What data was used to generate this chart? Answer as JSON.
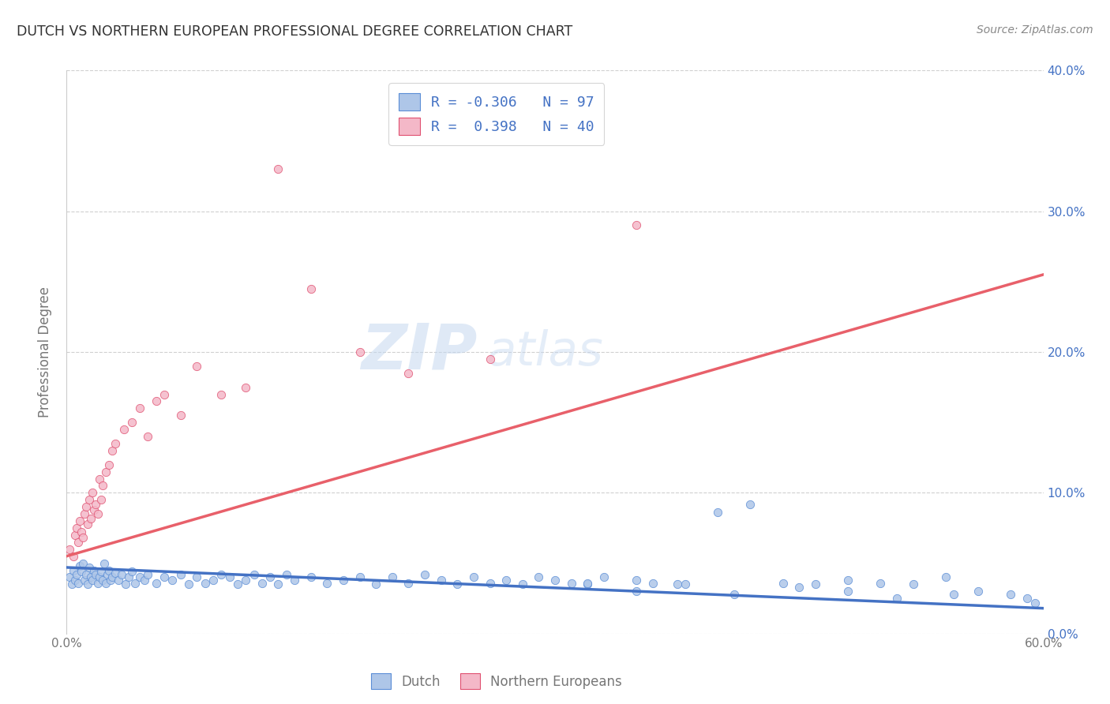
{
  "title": "DUTCH VS NORTHERN EUROPEAN PROFESSIONAL DEGREE CORRELATION CHART",
  "source": "Source: ZipAtlas.com",
  "ylabel": "Professional Degree",
  "dutch_color": "#aec6e8",
  "northern_color": "#f4b8c8",
  "dutch_edge_color": "#5b8ed6",
  "northern_edge_color": "#e05070",
  "dutch_line_color": "#4472c4",
  "northern_line_color": "#e8606a",
  "legend_label1": "Dutch",
  "legend_label2": "Northern Europeans",
  "R_dutch": -0.306,
  "N_dutch": 97,
  "R_northern": 0.398,
  "N_northern": 40,
  "watermark_zip": "ZIP",
  "watermark_atlas": "atlas",
  "xlim": [
    0.0,
    0.6
  ],
  "ylim": [
    0.0,
    0.4
  ],
  "figsize": [
    14.06,
    8.92
  ],
  "dpi": 100,
  "background_color": "#ffffff",
  "grid_color": "#d0d0d0",
  "title_color": "#333333",
  "axis_label_color": "#777777",
  "right_tick_color": "#4472c4",
  "legend_R_color": "#4472c4",
  "dutch_x": [
    0.002,
    0.003,
    0.004,
    0.005,
    0.006,
    0.007,
    0.008,
    0.009,
    0.01,
    0.011,
    0.012,
    0.013,
    0.014,
    0.015,
    0.016,
    0.017,
    0.018,
    0.019,
    0.02,
    0.021,
    0.022,
    0.023,
    0.024,
    0.025,
    0.026,
    0.027,
    0.028,
    0.03,
    0.032,
    0.034,
    0.036,
    0.038,
    0.04,
    0.042,
    0.045,
    0.048,
    0.05,
    0.055,
    0.06,
    0.065,
    0.07,
    0.075,
    0.08,
    0.085,
    0.09,
    0.095,
    0.1,
    0.105,
    0.11,
    0.115,
    0.12,
    0.125,
    0.13,
    0.135,
    0.14,
    0.15,
    0.16,
    0.17,
    0.18,
    0.19,
    0.2,
    0.21,
    0.22,
    0.23,
    0.24,
    0.25,
    0.26,
    0.27,
    0.28,
    0.29,
    0.3,
    0.31,
    0.32,
    0.33,
    0.35,
    0.36,
    0.38,
    0.4,
    0.42,
    0.44,
    0.46,
    0.48,
    0.5,
    0.52,
    0.54,
    0.56,
    0.58,
    0.59,
    0.595,
    0.32,
    0.35,
    0.375,
    0.41,
    0.45,
    0.48,
    0.51,
    0.545
  ],
  "dutch_y": [
    0.04,
    0.035,
    0.045,
    0.038,
    0.042,
    0.036,
    0.048,
    0.044,
    0.05,
    0.038,
    0.042,
    0.035,
    0.047,
    0.04,
    0.038,
    0.045,
    0.042,
    0.036,
    0.04,
    0.044,
    0.038,
    0.05,
    0.036,
    0.042,
    0.045,
    0.038,
    0.04,
    0.043,
    0.038,
    0.042,
    0.035,
    0.04,
    0.044,
    0.036,
    0.04,
    0.038,
    0.042,
    0.036,
    0.04,
    0.038,
    0.042,
    0.035,
    0.04,
    0.036,
    0.038,
    0.042,
    0.04,
    0.035,
    0.038,
    0.042,
    0.036,
    0.04,
    0.035,
    0.042,
    0.038,
    0.04,
    0.036,
    0.038,
    0.04,
    0.035,
    0.04,
    0.036,
    0.042,
    0.038,
    0.035,
    0.04,
    0.036,
    0.038,
    0.035,
    0.04,
    0.038,
    0.036,
    0.035,
    0.04,
    0.038,
    0.036,
    0.035,
    0.086,
    0.092,
    0.036,
    0.035,
    0.038,
    0.036,
    0.035,
    0.04,
    0.03,
    0.028,
    0.025,
    0.022,
    0.036,
    0.03,
    0.035,
    0.028,
    0.033,
    0.03,
    0.025,
    0.028
  ],
  "northern_x": [
    0.002,
    0.004,
    0.005,
    0.006,
    0.007,
    0.008,
    0.009,
    0.01,
    0.011,
    0.012,
    0.013,
    0.014,
    0.015,
    0.016,
    0.017,
    0.018,
    0.019,
    0.02,
    0.021,
    0.022,
    0.024,
    0.026,
    0.028,
    0.03,
    0.035,
    0.04,
    0.045,
    0.05,
    0.055,
    0.06,
    0.07,
    0.08,
    0.095,
    0.11,
    0.13,
    0.15,
    0.18,
    0.21,
    0.26,
    0.35
  ],
  "northern_y": [
    0.06,
    0.055,
    0.07,
    0.075,
    0.065,
    0.08,
    0.072,
    0.068,
    0.085,
    0.09,
    0.078,
    0.095,
    0.082,
    0.1,
    0.088,
    0.092,
    0.085,
    0.11,
    0.095,
    0.105,
    0.115,
    0.12,
    0.13,
    0.135,
    0.145,
    0.15,
    0.16,
    0.14,
    0.165,
    0.17,
    0.155,
    0.19,
    0.17,
    0.175,
    0.33,
    0.245,
    0.2,
    0.185,
    0.195,
    0.29
  ],
  "dutch_line_x0": 0.0,
  "dutch_line_y0": 0.047,
  "dutch_line_x1": 0.6,
  "dutch_line_y1": 0.018,
  "northern_line_x0": 0.0,
  "northern_line_y0": 0.055,
  "northern_line_x1": 0.6,
  "northern_line_y1": 0.255
}
